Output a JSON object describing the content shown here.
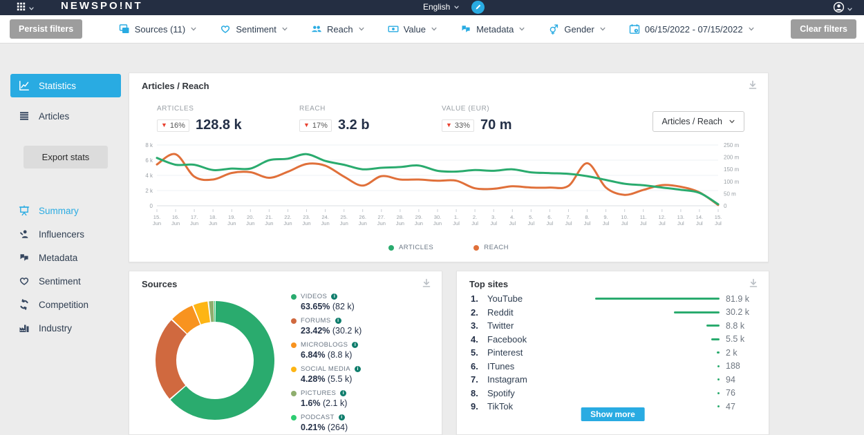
{
  "topbar": {
    "logo": "NEWSPO!NT",
    "language": "English"
  },
  "filterbar": {
    "persist_label": "Persist filters",
    "clear_label": "Clear filters",
    "filters": [
      {
        "id": "sources",
        "icon": "sources-icon",
        "label": "Sources (11)"
      },
      {
        "id": "sentiment",
        "icon": "heart-icon",
        "label": "Sentiment"
      },
      {
        "id": "reach",
        "icon": "people-icon",
        "label": "Reach"
      },
      {
        "id": "value",
        "icon": "money-icon",
        "label": "Value"
      },
      {
        "id": "metadata",
        "icon": "quotes-icon",
        "label": "Metadata"
      },
      {
        "id": "gender",
        "icon": "gender-icon",
        "label": "Gender"
      },
      {
        "id": "daterange",
        "icon": "calendar-icon",
        "label": "06/15/2022 - 07/15/2022"
      }
    ]
  },
  "sidebar": {
    "primary": [
      {
        "id": "statistics",
        "icon": "line-chart-icon",
        "label": "Statistics",
        "active": true
      },
      {
        "id": "articles",
        "icon": "list-icon",
        "label": "Articles",
        "active": false
      }
    ],
    "export_label": "Export stats",
    "secondary": [
      {
        "id": "summary",
        "icon": "presentation-icon",
        "label": "Summary",
        "active": true
      },
      {
        "id": "influencers",
        "icon": "person-icon",
        "label": "Influencers",
        "active": false
      },
      {
        "id": "metadata",
        "icon": "quotes-icon",
        "label": "Metadata",
        "active": false
      },
      {
        "id": "sentiment",
        "icon": "heart-icon",
        "label": "Sentiment",
        "active": false
      },
      {
        "id": "competition",
        "icon": "cycle-icon",
        "label": "Competition",
        "active": false
      },
      {
        "id": "industry",
        "icon": "factory-icon",
        "label": "Industry",
        "active": false
      }
    ]
  },
  "chart_card": {
    "title": "Articles / Reach",
    "metrics": [
      {
        "label": "ARTICLES",
        "change": "16%",
        "value": "128.8 k"
      },
      {
        "label": "REACH",
        "change": "17%",
        "value": "3.2 b"
      },
      {
        "label": "VALUE (EUR)",
        "change": "33%",
        "value": "70 m"
      }
    ],
    "view_selector": "Articles / Reach"
  },
  "sources_card": {
    "title": "Sources"
  },
  "topsites_card": {
    "title": "Top sites",
    "show_more_label": "Show more"
  },
  "colors": {
    "accent": "#29abe2",
    "topbar": "#242e42",
    "green": "#2aab6e",
    "orange": "#e0703a",
    "red": "#e8402f",
    "navy": "#243047"
  },
  "chart_data": [
    {
      "type": "line",
      "title": "Articles / Reach",
      "x": [
        "15. Jun",
        "16. Jun",
        "17. Jun",
        "18. Jun",
        "19. Jun",
        "20. Jun",
        "21. Jun",
        "22. Jun",
        "23. Jun",
        "24. Jun",
        "25. Jun",
        "26. Jun",
        "27. Jun",
        "28. Jun",
        "29. Jun",
        "30. Jun",
        "1. Jul",
        "2. Jul",
        "3. Jul",
        "4. Jul",
        "5. Jul",
        "6. Jul",
        "7. Jul",
        "8. Jul",
        "9. Jul",
        "10. Jul",
        "11. Jul",
        "12. Jul",
        "13. Jul",
        "14. Jul",
        "15. Jul"
      ],
      "series": [
        {
          "name": "ARTICLES",
          "axis": "left",
          "color": "#2aab6e",
          "values": [
            6.3,
            5.4,
            5.4,
            4.7,
            4.9,
            4.9,
            6.0,
            6.2,
            6.8,
            5.9,
            5.4,
            4.8,
            5.0,
            5.1,
            5.3,
            4.6,
            4.5,
            4.7,
            4.6,
            4.8,
            4.4,
            4.3,
            4.2,
            3.9,
            3.4,
            2.9,
            2.7,
            2.4,
            2.1,
            1.7,
            0.2
          ]
        },
        {
          "name": "REACH",
          "axis": "right",
          "color": "#e0703a",
          "values": [
            170,
            212,
            120,
            108,
            135,
            138,
            115,
            140,
            172,
            165,
            120,
            83,
            122,
            108,
            108,
            103,
            103,
            72,
            70,
            80,
            75,
            75,
            82,
            175,
            75,
            45,
            65,
            85,
            78,
            55,
            3
          ]
        }
      ],
      "left_axis": {
        "ticks": [
          "8 k",
          "6 k",
          "4 k",
          "2 k",
          "0"
        ],
        "tick_values": [
          8,
          6,
          4,
          2,
          0
        ],
        "max": 8
      },
      "right_axis": {
        "ticks": [
          "250 m",
          "200 m",
          "150 m",
          "100 m",
          "50 m",
          "0"
        ],
        "tick_values": [
          250,
          200,
          150,
          100,
          50,
          0
        ],
        "max": 250
      },
      "legend_position": "bottom"
    },
    {
      "type": "pie",
      "title": "Sources",
      "labels": [
        "VIDEOS",
        "FORUMS",
        "MICROBLOGS",
        "SOCIAL MEDIA",
        "PICTURES",
        "PODCAST"
      ],
      "values": [
        63.65,
        23.42,
        6.84,
        4.28,
        1.6,
        0.21
      ],
      "value_labels": [
        "63.65%",
        "23.42%",
        "6.84%",
        "4.28%",
        "1.6%",
        "0.21%"
      ],
      "counts": [
        "(82 k)",
        "(30.2 k)",
        "(8.8 k)",
        "(5.5 k)",
        "(2.1 k)",
        "(264)"
      ],
      "colors": [
        "#2aab6e",
        "#d0693f",
        "#f8931f",
        "#fdb515",
        "#8fae6e",
        "#2ecc71"
      ]
    },
    {
      "type": "bar",
      "title": "Top sites",
      "categories": [
        "YouTube",
        "Reddit",
        "Twitter",
        "Facebook",
        "Pinterest",
        "ITunes",
        "Instagram",
        "Spotify",
        "TikTok"
      ],
      "values": [
        81900,
        30200,
        8800,
        5500,
        2000,
        188,
        94,
        76,
        47
      ],
      "value_labels": [
        "81.9 k",
        "30.2 k",
        "8.8 k",
        "5.5 k",
        "2 k",
        "188",
        "94",
        "76",
        "47"
      ],
      "bar_color": "#2aab6e"
    }
  ]
}
